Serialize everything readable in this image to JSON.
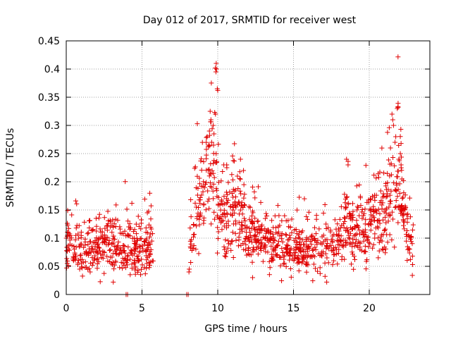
{
  "chart_data": {
    "type": "scatter",
    "title": "Day 012 of 2017, SRMTID for receiver west",
    "xlabel": "GPS time / hours",
    "ylabel": "SRMTID / TECUs",
    "xlim": [
      0,
      24
    ],
    "ylim": [
      0,
      0.45
    ],
    "xticks": [
      0,
      5,
      10,
      15,
      20
    ],
    "xtick_labels": [
      "0",
      "5",
      "10",
      "15",
      "20"
    ],
    "yticks": [
      0,
      0.05,
      0.1,
      0.15,
      0.2,
      0.25,
      0.3,
      0.35,
      0.4,
      0.45
    ],
    "ytick_labels": [
      "0",
      "0.05",
      "0.1",
      "0.15",
      "0.2",
      "0.25",
      "0.3",
      "0.35",
      "0.4",
      "0.45"
    ],
    "grid": true,
    "marker": "+",
    "marker_color": "#e00000",
    "series": [
      {
        "name": "SRMTID",
        "profile": [
          {
            "x": 0.0,
            "mean": 0.09,
            "spread": 0.025
          },
          {
            "x": 0.5,
            "mean": 0.095,
            "spread": 0.03
          },
          {
            "x": 1.0,
            "mean": 0.07,
            "spread": 0.025
          },
          {
            "x": 1.5,
            "mean": 0.07,
            "spread": 0.025
          },
          {
            "x": 2.0,
            "mean": 0.085,
            "spread": 0.03
          },
          {
            "x": 3.0,
            "mean": 0.09,
            "spread": 0.03
          },
          {
            "x": 4.0,
            "mean": 0.08,
            "spread": 0.03
          },
          {
            "x": 5.0,
            "mean": 0.08,
            "spread": 0.03
          },
          {
            "x": 5.7,
            "mean": 0.085,
            "spread": 0.03
          },
          {
            "x": 8.2,
            "mean": 0.1,
            "spread": 0.03
          },
          {
            "x": 8.5,
            "mean": 0.14,
            "spread": 0.04
          },
          {
            "x": 9.0,
            "mean": 0.19,
            "spread": 0.05
          },
          {
            "x": 9.5,
            "mean": 0.23,
            "spread": 0.06
          },
          {
            "x": 10.0,
            "mean": 0.17,
            "spread": 0.06
          },
          {
            "x": 10.5,
            "mean": 0.13,
            "spread": 0.04
          },
          {
            "x": 11.0,
            "mean": 0.14,
            "spread": 0.04
          },
          {
            "x": 11.5,
            "mean": 0.15,
            "spread": 0.04
          },
          {
            "x": 12.0,
            "mean": 0.11,
            "spread": 0.03
          },
          {
            "x": 13.0,
            "mean": 0.095,
            "spread": 0.025
          },
          {
            "x": 14.0,
            "mean": 0.09,
            "spread": 0.025
          },
          {
            "x": 15.0,
            "mean": 0.08,
            "spread": 0.025
          },
          {
            "x": 16.0,
            "mean": 0.075,
            "spread": 0.025
          },
          {
            "x": 17.0,
            "mean": 0.085,
            "spread": 0.03
          },
          {
            "x": 18.0,
            "mean": 0.1,
            "spread": 0.03
          },
          {
            "x": 18.5,
            "mean": 0.125,
            "spread": 0.04
          },
          {
            "x": 19.0,
            "mean": 0.11,
            "spread": 0.035
          },
          {
            "x": 20.0,
            "mean": 0.12,
            "spread": 0.035
          },
          {
            "x": 21.0,
            "mean": 0.14,
            "spread": 0.045
          },
          {
            "x": 21.5,
            "mean": 0.16,
            "spread": 0.05
          },
          {
            "x": 22.0,
            "mean": 0.19,
            "spread": 0.06
          },
          {
            "x": 22.5,
            "mean": 0.11,
            "spread": 0.035
          },
          {
            "x": 22.9,
            "mean": 0.09,
            "spread": 0.03
          }
        ],
        "segments": [
          [
            0.0,
            5.75
          ],
          [
            8.15,
            22.9
          ]
        ],
        "approx_point_count": 1400,
        "extra_points": [
          [
            3.95,
            0.0
          ],
          [
            4.05,
            0.0
          ],
          [
            7.95,
            0.0
          ],
          [
            8.05,
            0.0
          ],
          [
            8.1,
            0.04
          ],
          [
            8.12,
            0.045
          ],
          [
            9.9,
            0.41
          ],
          [
            9.92,
            0.4
          ],
          [
            9.88,
            0.395
          ],
          [
            9.97,
            0.365
          ],
          [
            10.0,
            0.362
          ],
          [
            9.5,
            0.325
          ],
          [
            9.8,
            0.323
          ],
          [
            9.85,
            0.32
          ],
          [
            9.55,
            0.31
          ],
          [
            9.7,
            0.3
          ],
          [
            9.75,
            0.285
          ],
          [
            9.3,
            0.28
          ],
          [
            9.6,
            0.27
          ],
          [
            9.4,
            0.265
          ],
          [
            9.45,
            0.29
          ],
          [
            10.4,
            0.23
          ],
          [
            10.6,
            0.225
          ],
          [
            11.3,
            0.21
          ],
          [
            11.5,
            0.24
          ],
          [
            11.7,
            0.22
          ],
          [
            12.3,
            0.03
          ],
          [
            18.5,
            0.24
          ],
          [
            18.6,
            0.23
          ],
          [
            21.4,
            0.26
          ],
          [
            21.5,
            0.32
          ],
          [
            21.55,
            0.31
          ],
          [
            21.6,
            0.3
          ],
          [
            21.85,
            0.33
          ],
          [
            21.9,
            0.332
          ],
          [
            21.75,
            0.28
          ],
          [
            21.7,
            0.27
          ],
          [
            22.05,
            0.25
          ],
          [
            22.1,
            0.23
          ],
          [
            21.95,
            0.24
          ]
        ]
      }
    ]
  }
}
